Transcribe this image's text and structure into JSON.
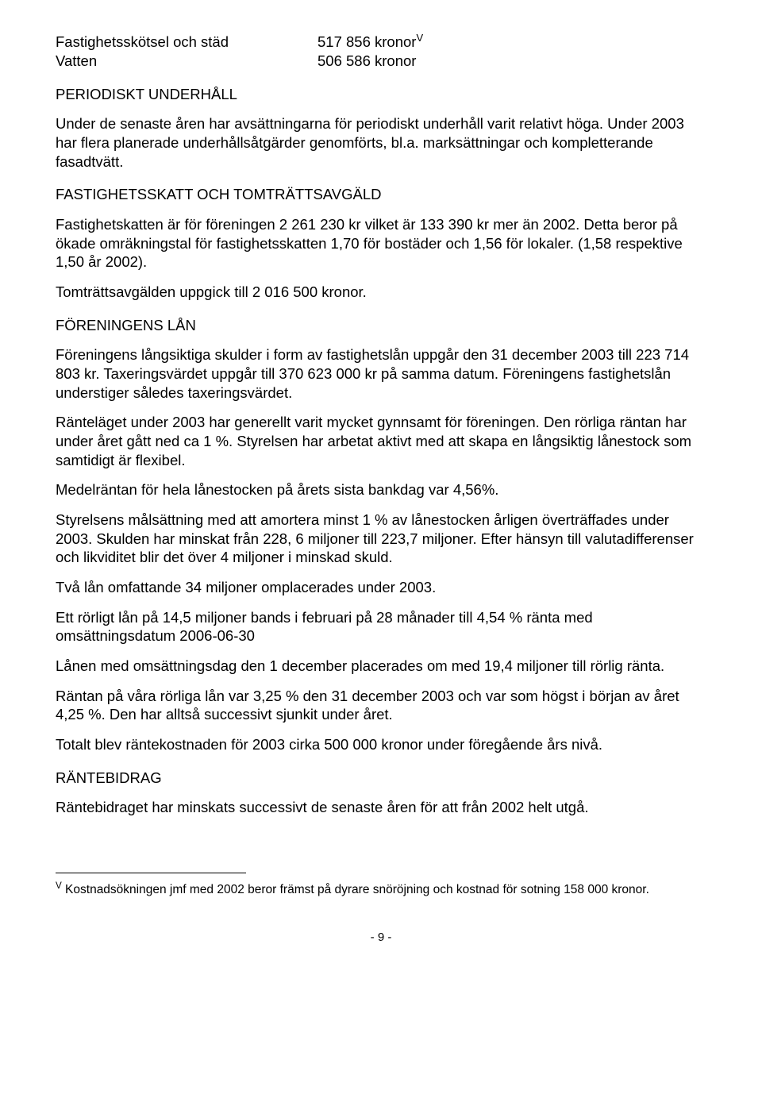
{
  "costTable": {
    "rows": [
      {
        "label": "Fastighetsskötsel och städ",
        "value": "517 856 kronor",
        "marker": "V"
      },
      {
        "label": "Vatten",
        "value": "506 586 kronor",
        "marker": ""
      }
    ]
  },
  "sections": {
    "periodisktHeading": "PERIODISKT UNDERHÅLL",
    "periodisktP1": "Under de senaste åren har avsättningarna för periodiskt underhåll varit relativt höga. Under 2003 har flera planerade underhållsåtgärder genomförts, bl.a. marksättningar och kompletterande fasadtvätt.",
    "skattHeading": "FASTIGHETSSKATT OCH TOMTRÄTTSAVGÄLD",
    "skattP1": "Fastighetskatten är för föreningen 2 261 230 kr vilket är 133 390 kr mer än 2002. Detta beror på ökade omräkningstal för fastighetsskatten 1,70 för bostäder och 1,56 för lokaler. (1,58 respektive 1,50 år 2002).",
    "skattP2": "Tomträttsavgälden uppgick till 2 016 500 kronor.",
    "lanHeading": "FÖRENINGENS LÅN",
    "lanP1": "Föreningens långsiktiga skulder i form av fastighetslån uppgår den 31 december 2003 till 223 714 803 kr. Taxeringsvärdet uppgår till 370 623 000 kr på samma datum. Föreningens fastighetslån understiger således taxeringsvärdet.",
    "lanP2": "Ränteläget under 2003 har generellt varit mycket gynnsamt för föreningen. Den rörliga räntan har under året gått ned ca 1 %. Styrelsen har arbetat aktivt med att skapa en långsiktig lånestock som samtidigt är flexibel.",
    "lanP3": "Medelräntan för hela lånestocken på årets sista bankdag var 4,56%.",
    "lanP4": "Styrelsens målsättning med att amortera minst 1 % av lånestocken årligen överträffades under 2003. Skulden har minskat från 228, 6 miljoner till 223,7 miljoner. Efter hänsyn till valutadifferenser och likviditet blir det över 4 miljoner i minskad skuld.",
    "lanP5": "Två lån omfattande 34 miljoner omplacerades under 2003.",
    "lanP6": "Ett rörligt lån på 14,5 miljoner bands i februari på 28 månader till 4,54 % ränta med omsättningsdatum 2006-06-30",
    "lanP7": "Lånen med omsättningsdag den 1 december placerades om med 19,4 miljoner till rörlig ränta.",
    "lanP8": "Räntan på våra rörliga lån var 3,25 % den 31 december 2003 och var som högst i början av året 4,25 %. Den har alltså successivt sjunkit under året.",
    "lanP9": "Totalt blev räntekostnaden för 2003 cirka 500 000 kronor under föregående års nivå.",
    "bidragHeading": "RÄNTEBIDRAG",
    "bidragP1": "Räntebidraget har minskats successivt de senaste åren för att från 2002 helt utgå."
  },
  "footnote": {
    "marker": "V",
    "text": " Kostnadsökningen jmf med 2002 beror främst på dyrare snöröjning och kostnad för sotning 158 000 kronor."
  },
  "pageNumber": "- 9 -"
}
